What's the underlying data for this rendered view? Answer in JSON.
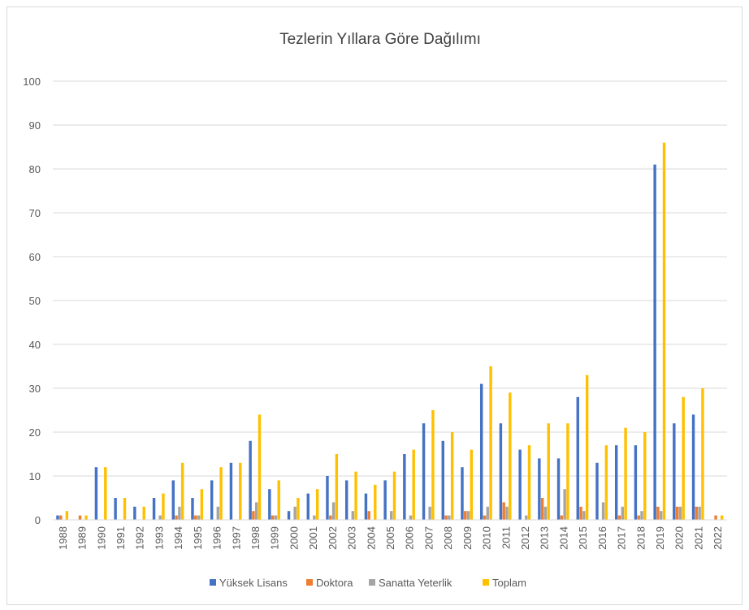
{
  "chart_data": {
    "type": "bar",
    "title": "Tezlerin Yıllara Göre Dağılımı",
    "categories": [
      "1988",
      "1989",
      "1990",
      "1991",
      "1992",
      "1993",
      "1994",
      "1995",
      "1996",
      "1997",
      "1998",
      "1999",
      "2000",
      "2001",
      "2002",
      "2003",
      "2004",
      "2005",
      "2006",
      "2007",
      "2008",
      "2009",
      "2010",
      "2011",
      "2012",
      "2013",
      "2014",
      "2015",
      "2016",
      "2017",
      "2018",
      "2019",
      "2020",
      "2021",
      "2022"
    ],
    "series": [
      {
        "name": "Yüksek Lisans",
        "color": "#4472c4",
        "values": [
          1,
          0,
          12,
          5,
          3,
          5,
          9,
          5,
          9,
          13,
          18,
          7,
          2,
          6,
          10,
          9,
          6,
          9,
          15,
          22,
          18,
          12,
          31,
          22,
          16,
          14,
          14,
          28,
          13,
          17,
          17,
          81,
          22,
          24,
          0
        ]
      },
      {
        "name": "Doktora",
        "color": "#ed7d31",
        "values": [
          1,
          1,
          0,
          0,
          0,
          0,
          1,
          1,
          0,
          0,
          2,
          1,
          0,
          0,
          1,
          0,
          2,
          0,
          0,
          0,
          1,
          2,
          1,
          4,
          0,
          5,
          1,
          3,
          0,
          1,
          1,
          3,
          3,
          3,
          1
        ]
      },
      {
        "name": "Sanatta Yeterlik",
        "color": "#a5a5a5",
        "values": [
          0,
          0,
          0,
          0,
          0,
          1,
          3,
          1,
          3,
          0,
          4,
          1,
          3,
          1,
          4,
          2,
          0,
          2,
          1,
          3,
          1,
          2,
          3,
          3,
          1,
          3,
          7,
          2,
          4,
          3,
          2,
          2,
          3,
          3,
          0
        ]
      },
      {
        "name": "Toplam",
        "color": "#ffc000",
        "values": [
          2,
          1,
          12,
          5,
          3,
          6,
          13,
          7,
          12,
          13,
          24,
          9,
          5,
          7,
          15,
          11,
          8,
          11,
          16,
          25,
          20,
          16,
          35,
          29,
          17,
          22,
          22,
          33,
          17,
          21,
          20,
          86,
          28,
          30,
          1
        ]
      }
    ],
    "ylim": [
      0,
      100
    ],
    "yticks": [
      0,
      10,
      20,
      30,
      40,
      50,
      60,
      70,
      80,
      90,
      100
    ],
    "grid": true,
    "legend": "bottom"
  }
}
